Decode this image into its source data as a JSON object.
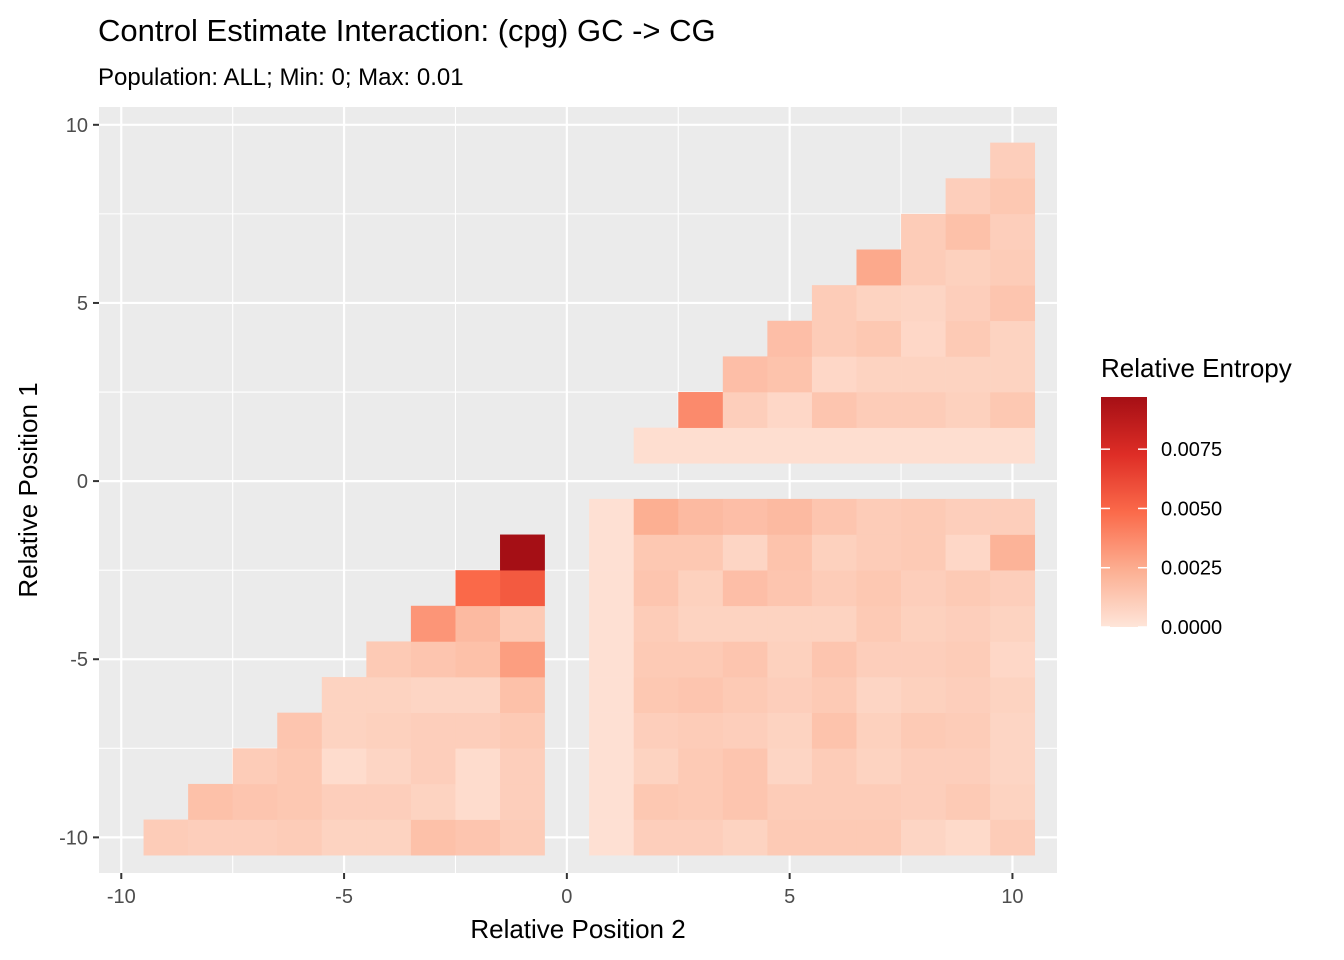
{
  "chart_data": {
    "type": "heatmap",
    "title": "Control Estimate Interaction: (cpg) GC -> CG",
    "subtitle": "Population: ALL; Min: 0; Max: 0.01",
    "xlabel": "Relative Position 2",
    "ylabel": "Relative Position 1",
    "xlim": [
      -10.5,
      11
    ],
    "ylim": [
      -11,
      10.5
    ],
    "x_ticks": [
      -10,
      -5,
      0,
      5,
      10
    ],
    "y_ticks": [
      -10,
      -5,
      0,
      5,
      10
    ],
    "x_tick_labels": [
      "-10",
      "-5",
      "0",
      "5",
      "10"
    ],
    "y_tick_labels": [
      "-10",
      "-5",
      "0",
      "5",
      "10"
    ],
    "grid": true,
    "background": "#ebebeb",
    "legend": {
      "title": "Relative Entropy",
      "position": "right",
      "min": 0,
      "max": 0.0097,
      "breaks": [
        0.0,
        0.0025,
        0.005,
        0.0075
      ],
      "labels": [
        "0.0000",
        "0.0025",
        "0.0050",
        "0.0075"
      ],
      "colors": [
        "#fee5d9",
        "#fcae91",
        "#fb6a4a",
        "#de2d26",
        "#a50f15"
      ]
    },
    "cells": [
      {
        "x": -9,
        "y": -10,
        "v": 0.0011
      },
      {
        "x": -8,
        "y": -10,
        "v": 0.001
      },
      {
        "x": -7,
        "y": -10,
        "v": 0.001
      },
      {
        "x": -6,
        "y": -10,
        "v": 0.0011
      },
      {
        "x": -5,
        "y": -10,
        "v": 0.0008
      },
      {
        "x": -4,
        "y": -10,
        "v": 0.0008
      },
      {
        "x": -3,
        "y": -10,
        "v": 0.0016
      },
      {
        "x": -2,
        "y": -10,
        "v": 0.0014
      },
      {
        "x": -1,
        "y": -10,
        "v": 0.0011
      },
      {
        "x": -8,
        "y": -9,
        "v": 0.0016
      },
      {
        "x": -7,
        "y": -9,
        "v": 0.0014
      },
      {
        "x": -6,
        "y": -9,
        "v": 0.0013
      },
      {
        "x": -5,
        "y": -9,
        "v": 0.001
      },
      {
        "x": -4,
        "y": -9,
        "v": 0.001
      },
      {
        "x": -3,
        "y": -9,
        "v": 0.0008
      },
      {
        "x": -2,
        "y": -9,
        "v": 0.0004
      },
      {
        "x": -1,
        "y": -9,
        "v": 0.001
      },
      {
        "x": -7,
        "y": -8,
        "v": 0.0011
      },
      {
        "x": -6,
        "y": -8,
        "v": 0.0013
      },
      {
        "x": -5,
        "y": -8,
        "v": 0.0004
      },
      {
        "x": -4,
        "y": -8,
        "v": 0.0007
      },
      {
        "x": -3,
        "y": -8,
        "v": 0.001
      },
      {
        "x": -2,
        "y": -8,
        "v": 0.0004
      },
      {
        "x": -1,
        "y": -8,
        "v": 0.001
      },
      {
        "x": -6,
        "y": -7,
        "v": 0.0014
      },
      {
        "x": -5,
        "y": -7,
        "v": 0.0008
      },
      {
        "x": -4,
        "y": -7,
        "v": 0.0009
      },
      {
        "x": -3,
        "y": -7,
        "v": 0.001
      },
      {
        "x": -2,
        "y": -7,
        "v": 0.001
      },
      {
        "x": -1,
        "y": -7,
        "v": 0.0012
      },
      {
        "x": -5,
        "y": -6,
        "v": 0.0008
      },
      {
        "x": -4,
        "y": -6,
        "v": 0.0008
      },
      {
        "x": -3,
        "y": -6,
        "v": 0.0007
      },
      {
        "x": -2,
        "y": -6,
        "v": 0.0007
      },
      {
        "x": -1,
        "y": -6,
        "v": 0.0016
      },
      {
        "x": -4,
        "y": -5,
        "v": 0.0012
      },
      {
        "x": -3,
        "y": -5,
        "v": 0.0014
      },
      {
        "x": -2,
        "y": -5,
        "v": 0.0016
      },
      {
        "x": -1,
        "y": -5,
        "v": 0.003
      },
      {
        "x": -3,
        "y": -4,
        "v": 0.0033
      },
      {
        "x": -2,
        "y": -4,
        "v": 0.0019
      },
      {
        "x": -1,
        "y": -4,
        "v": 0.0012
      },
      {
        "x": -2,
        "y": -3,
        "v": 0.0049
      },
      {
        "x": -1,
        "y": -3,
        "v": 0.0055
      },
      {
        "x": -1,
        "y": -2,
        "v": 0.0097
      },
      {
        "x": 1,
        "y": -10,
        "v": 0.0002
      },
      {
        "x": 2,
        "y": -10,
        "v": 0.001
      },
      {
        "x": 3,
        "y": -10,
        "v": 0.001
      },
      {
        "x": 4,
        "y": -10,
        "v": 0.0008
      },
      {
        "x": 5,
        "y": -10,
        "v": 0.0012
      },
      {
        "x": 6,
        "y": -10,
        "v": 0.0012
      },
      {
        "x": 7,
        "y": -10,
        "v": 0.0012
      },
      {
        "x": 8,
        "y": -10,
        "v": 0.0007
      },
      {
        "x": 9,
        "y": -10,
        "v": 0.0005
      },
      {
        "x": 10,
        "y": -10,
        "v": 0.0011
      },
      {
        "x": 1,
        "y": -9,
        "v": 0.0002
      },
      {
        "x": 2,
        "y": -9,
        "v": 0.0013
      },
      {
        "x": 3,
        "y": -9,
        "v": 0.0012
      },
      {
        "x": 4,
        "y": -9,
        "v": 0.0014
      },
      {
        "x": 5,
        "y": -9,
        "v": 0.0011
      },
      {
        "x": 6,
        "y": -9,
        "v": 0.0011
      },
      {
        "x": 7,
        "y": -9,
        "v": 0.0011
      },
      {
        "x": 8,
        "y": -9,
        "v": 0.001
      },
      {
        "x": 9,
        "y": -9,
        "v": 0.0012
      },
      {
        "x": 10,
        "y": -9,
        "v": 0.0008
      },
      {
        "x": 1,
        "y": -8,
        "v": 0.0002
      },
      {
        "x": 2,
        "y": -8,
        "v": 0.0008
      },
      {
        "x": 3,
        "y": -8,
        "v": 0.0012
      },
      {
        "x": 4,
        "y": -8,
        "v": 0.0014
      },
      {
        "x": 5,
        "y": -8,
        "v": 0.0007
      },
      {
        "x": 6,
        "y": -8,
        "v": 0.0011
      },
      {
        "x": 7,
        "y": -8,
        "v": 0.0008
      },
      {
        "x": 8,
        "y": -8,
        "v": 0.001
      },
      {
        "x": 9,
        "y": -8,
        "v": 0.001
      },
      {
        "x": 10,
        "y": -8,
        "v": 0.0007
      },
      {
        "x": 1,
        "y": -7,
        "v": 0.0002
      },
      {
        "x": 2,
        "y": -7,
        "v": 0.001
      },
      {
        "x": 3,
        "y": -7,
        "v": 0.0011
      },
      {
        "x": 4,
        "y": -7,
        "v": 0.001
      },
      {
        "x": 5,
        "y": -7,
        "v": 0.0008
      },
      {
        "x": 6,
        "y": -7,
        "v": 0.0015
      },
      {
        "x": 7,
        "y": -7,
        "v": 0.0009
      },
      {
        "x": 8,
        "y": -7,
        "v": 0.0012
      },
      {
        "x": 9,
        "y": -7,
        "v": 0.0011
      },
      {
        "x": 10,
        "y": -7,
        "v": 0.0007
      },
      {
        "x": 1,
        "y": -6,
        "v": 0.0002
      },
      {
        "x": 2,
        "y": -6,
        "v": 0.0013
      },
      {
        "x": 3,
        "y": -6,
        "v": 0.0014
      },
      {
        "x": 4,
        "y": -6,
        "v": 0.0012
      },
      {
        "x": 5,
        "y": -6,
        "v": 0.001
      },
      {
        "x": 6,
        "y": -6,
        "v": 0.0012
      },
      {
        "x": 7,
        "y": -6,
        "v": 0.0007
      },
      {
        "x": 8,
        "y": -6,
        "v": 0.0009
      },
      {
        "x": 9,
        "y": -6,
        "v": 0.001
      },
      {
        "x": 10,
        "y": -6,
        "v": 0.0008
      },
      {
        "x": 1,
        "y": -5,
        "v": 0.0002
      },
      {
        "x": 2,
        "y": -5,
        "v": 0.0012
      },
      {
        "x": 3,
        "y": -5,
        "v": 0.0012
      },
      {
        "x": 4,
        "y": -5,
        "v": 0.0014
      },
      {
        "x": 5,
        "y": -5,
        "v": 0.0009
      },
      {
        "x": 6,
        "y": -5,
        "v": 0.0014
      },
      {
        "x": 7,
        "y": -5,
        "v": 0.001
      },
      {
        "x": 8,
        "y": -5,
        "v": 0.001
      },
      {
        "x": 9,
        "y": -5,
        "v": 0.0011
      },
      {
        "x": 10,
        "y": -5,
        "v": 0.0006
      },
      {
        "x": 1,
        "y": -4,
        "v": 0.0002
      },
      {
        "x": 2,
        "y": -4,
        "v": 0.0011
      },
      {
        "x": 3,
        "y": -4,
        "v": 0.0008
      },
      {
        "x": 4,
        "y": -4,
        "v": 0.0008
      },
      {
        "x": 5,
        "y": -4,
        "v": 0.0008
      },
      {
        "x": 6,
        "y": -4,
        "v": 0.0008
      },
      {
        "x": 7,
        "y": -4,
        "v": 0.0012
      },
      {
        "x": 8,
        "y": -4,
        "v": 0.0009
      },
      {
        "x": 9,
        "y": -4,
        "v": 0.001
      },
      {
        "x": 10,
        "y": -4,
        "v": 0.0008
      },
      {
        "x": 1,
        "y": -3,
        "v": 0.0002
      },
      {
        "x": 2,
        "y": -3,
        "v": 0.0014
      },
      {
        "x": 3,
        "y": -3,
        "v": 0.0009
      },
      {
        "x": 4,
        "y": -3,
        "v": 0.0017
      },
      {
        "x": 5,
        "y": -3,
        "v": 0.0014
      },
      {
        "x": 6,
        "y": -3,
        "v": 0.0011
      },
      {
        "x": 7,
        "y": -3,
        "v": 0.0013
      },
      {
        "x": 8,
        "y": -3,
        "v": 0.001
      },
      {
        "x": 9,
        "y": -3,
        "v": 0.0012
      },
      {
        "x": 10,
        "y": -3,
        "v": 0.001
      },
      {
        "x": 1,
        "y": -2,
        "v": 0.0002
      },
      {
        "x": 2,
        "y": -2,
        "v": 0.0013
      },
      {
        "x": 3,
        "y": -2,
        "v": 0.0013
      },
      {
        "x": 4,
        "y": -2,
        "v": 0.0007
      },
      {
        "x": 5,
        "y": -2,
        "v": 0.0015
      },
      {
        "x": 6,
        "y": -2,
        "v": 0.0009
      },
      {
        "x": 7,
        "y": -2,
        "v": 0.0011
      },
      {
        "x": 8,
        "y": -2,
        "v": 0.0012
      },
      {
        "x": 9,
        "y": -2,
        "v": 0.0006
      },
      {
        "x": 10,
        "y": -2,
        "v": 0.0022
      },
      {
        "x": 1,
        "y": -1,
        "v": 0.0002
      },
      {
        "x": 2,
        "y": -1,
        "v": 0.0024
      },
      {
        "x": 3,
        "y": -1,
        "v": 0.0019
      },
      {
        "x": 4,
        "y": -1,
        "v": 0.0017
      },
      {
        "x": 5,
        "y": -1,
        "v": 0.0019
      },
      {
        "x": 6,
        "y": -1,
        "v": 0.0014
      },
      {
        "x": 7,
        "y": -1,
        "v": 0.0011
      },
      {
        "x": 8,
        "y": -1,
        "v": 0.0012
      },
      {
        "x": 9,
        "y": -1,
        "v": 0.001
      },
      {
        "x": 10,
        "y": -1,
        "v": 0.001
      },
      {
        "x": 2,
        "y": 1,
        "v": 0.0003
      },
      {
        "x": 3,
        "y": 1,
        "v": 0.0003
      },
      {
        "x": 4,
        "y": 1,
        "v": 0.0003
      },
      {
        "x": 5,
        "y": 1,
        "v": 0.0003
      },
      {
        "x": 6,
        "y": 1,
        "v": 0.0003
      },
      {
        "x": 7,
        "y": 1,
        "v": 0.0003
      },
      {
        "x": 8,
        "y": 1,
        "v": 0.0003
      },
      {
        "x": 9,
        "y": 1,
        "v": 0.0003
      },
      {
        "x": 10,
        "y": 1,
        "v": 0.0003
      },
      {
        "x": 3,
        "y": 2,
        "v": 0.0037
      },
      {
        "x": 4,
        "y": 2,
        "v": 0.001
      },
      {
        "x": 5,
        "y": 2,
        "v": 0.0006
      },
      {
        "x": 6,
        "y": 2,
        "v": 0.0014
      },
      {
        "x": 7,
        "y": 2,
        "v": 0.0011
      },
      {
        "x": 8,
        "y": 2,
        "v": 0.0011
      },
      {
        "x": 9,
        "y": 2,
        "v": 0.0009
      },
      {
        "x": 10,
        "y": 2,
        "v": 0.0013
      },
      {
        "x": 4,
        "y": 3,
        "v": 0.0017
      },
      {
        "x": 5,
        "y": 3,
        "v": 0.0015
      },
      {
        "x": 6,
        "y": 3,
        "v": 0.0006
      },
      {
        "x": 7,
        "y": 3,
        "v": 0.0008
      },
      {
        "x": 8,
        "y": 3,
        "v": 0.0008
      },
      {
        "x": 9,
        "y": 3,
        "v": 0.0008
      },
      {
        "x": 10,
        "y": 3,
        "v": 0.0008
      },
      {
        "x": 5,
        "y": 4,
        "v": 0.0017
      },
      {
        "x": 6,
        "y": 4,
        "v": 0.0011
      },
      {
        "x": 7,
        "y": 4,
        "v": 0.0013
      },
      {
        "x": 8,
        "y": 4,
        "v": 0.0006
      },
      {
        "x": 9,
        "y": 4,
        "v": 0.0012
      },
      {
        "x": 10,
        "y": 4,
        "v": 0.0008
      },
      {
        "x": 6,
        "y": 5,
        "v": 0.0011
      },
      {
        "x": 7,
        "y": 5,
        "v": 0.0008
      },
      {
        "x": 8,
        "y": 5,
        "v": 0.0007
      },
      {
        "x": 9,
        "y": 5,
        "v": 0.001
      },
      {
        "x": 10,
        "y": 5,
        "v": 0.0014
      },
      {
        "x": 7,
        "y": 6,
        "v": 0.0026
      },
      {
        "x": 8,
        "y": 6,
        "v": 0.0011
      },
      {
        "x": 9,
        "y": 6,
        "v": 0.0009
      },
      {
        "x": 10,
        "y": 6,
        "v": 0.0011
      },
      {
        "x": 8,
        "y": 7,
        "v": 0.0011
      },
      {
        "x": 9,
        "y": 7,
        "v": 0.0016
      },
      {
        "x": 10,
        "y": 7,
        "v": 0.001
      },
      {
        "x": 9,
        "y": 8,
        "v": 0.001
      },
      {
        "x": 10,
        "y": 8,
        "v": 0.0013
      },
      {
        "x": 10,
        "y": 9,
        "v": 0.001
      }
    ]
  }
}
